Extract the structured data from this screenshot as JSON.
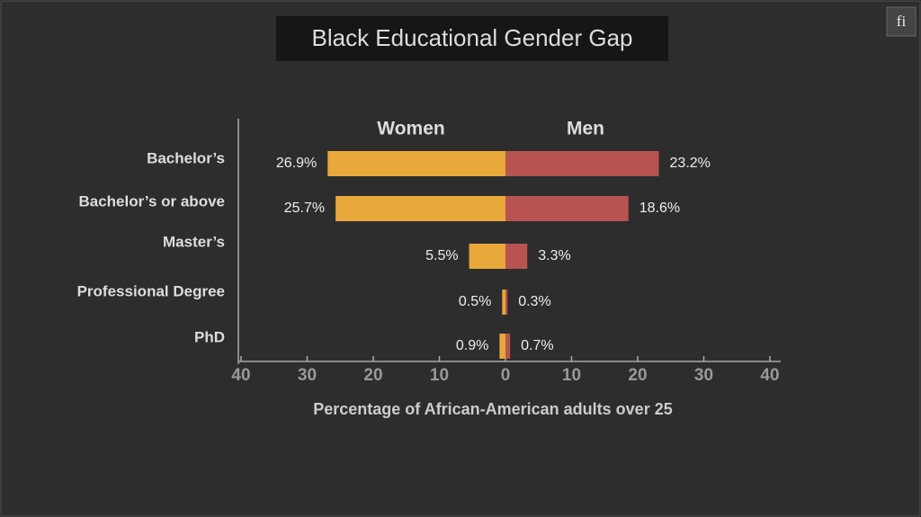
{
  "chart_data": {
    "type": "diverging_bar",
    "title": "Black Educational Gender Gap",
    "icon": "fi",
    "xlabel": "Percentage of African-American adults over 25",
    "categories": [
      "Bachelor’s",
      "Bachelor’s or above",
      "Master’s",
      "Professional Degree",
      "PhD"
    ],
    "series": [
      {
        "name": "Women",
        "color": "#e8a83a",
        "values": [
          26.9,
          25.7,
          5.5,
          0.5,
          0.9
        ],
        "value_labels": [
          "26.9%",
          "25.7%",
          "5.5%",
          "0.5%",
          "0.9%"
        ]
      },
      {
        "name": "Men",
        "color": "#b75451",
        "values": [
          23.2,
          18.6,
          3.3,
          0.3,
          0.7
        ],
        "value_labels": [
          "23.2%",
          "18.6%",
          "3.3%",
          "0.3%",
          "0.7%"
        ]
      }
    ],
    "xlim": [
      -40,
      40
    ],
    "xticks": [
      {
        "value": -40,
        "label": "40"
      },
      {
        "value": -30,
        "label": "30"
      },
      {
        "value": -20,
        "label": "20"
      },
      {
        "value": -10,
        "label": "10"
      },
      0,
      10,
      20,
      30,
      40
    ]
  }
}
